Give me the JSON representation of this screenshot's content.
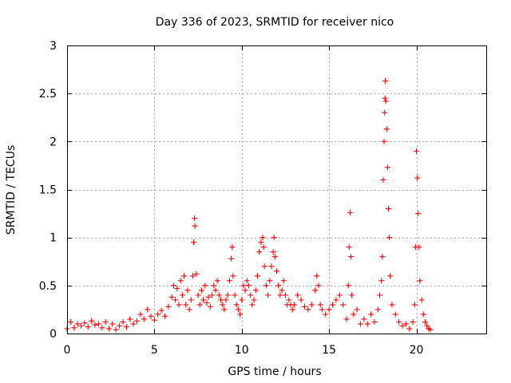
{
  "chart_data": {
    "type": "scatter",
    "title": "Day 336 of 2023, SRMTID for receiver nico",
    "xlabel": "GPS time / hours",
    "ylabel": "SRMTID / TECUs",
    "xlim": [
      0,
      24
    ],
    "ylim": [
      0,
      3
    ],
    "xticks": [
      0,
      5,
      10,
      15,
      20
    ],
    "xtick_labels": [
      "0",
      "5",
      "10",
      "15",
      "20"
    ],
    "yticks": [
      0,
      0.5,
      1,
      1.5,
      2,
      2.5,
      3
    ],
    "ytick_labels": [
      "0",
      "0.5",
      "1",
      "1.5",
      "2",
      "2.5",
      "3"
    ],
    "grid": true,
    "marker": "plus",
    "color": "#ff0000",
    "series": [
      {
        "name": "SRMTID",
        "points": [
          [
            0.0,
            0.05
          ],
          [
            0.2,
            0.12
          ],
          [
            0.4,
            0.06
          ],
          [
            0.6,
            0.1
          ],
          [
            0.8,
            0.08
          ],
          [
            1.0,
            0.11
          ],
          [
            1.2,
            0.07
          ],
          [
            1.4,
            0.13
          ],
          [
            1.6,
            0.09
          ],
          [
            1.8,
            0.1
          ],
          [
            2.0,
            0.06
          ],
          [
            2.2,
            0.12
          ],
          [
            2.4,
            0.05
          ],
          [
            2.6,
            0.1
          ],
          [
            2.8,
            0.04
          ],
          [
            3.0,
            0.08
          ],
          [
            3.2,
            0.12
          ],
          [
            3.4,
            0.07
          ],
          [
            3.6,
            0.15
          ],
          [
            3.8,
            0.1
          ],
          [
            4.0,
            0.13
          ],
          [
            4.2,
            0.2
          ],
          [
            4.4,
            0.15
          ],
          [
            4.6,
            0.25
          ],
          [
            4.8,
            0.18
          ],
          [
            5.0,
            0.14
          ],
          [
            5.2,
            0.2
          ],
          [
            5.4,
            0.24
          ],
          [
            5.6,
            0.18
          ],
          [
            5.8,
            0.28
          ],
          [
            6.0,
            0.38
          ],
          [
            6.1,
            0.5
          ],
          [
            6.2,
            0.35
          ],
          [
            6.3,
            0.47
          ],
          [
            6.4,
            0.3
          ],
          [
            6.5,
            0.55
          ],
          [
            6.6,
            0.4
          ],
          [
            6.7,
            0.6
          ],
          [
            6.8,
            0.3
          ],
          [
            6.9,
            0.45
          ],
          [
            7.0,
            0.25
          ],
          [
            7.1,
            0.35
          ],
          [
            7.2,
            0.6
          ],
          [
            7.25,
            0.95
          ],
          [
            7.3,
            1.2
          ],
          [
            7.32,
            1.12
          ],
          [
            7.4,
            0.62
          ],
          [
            7.5,
            0.4
          ],
          [
            7.6,
            0.3
          ],
          [
            7.7,
            0.45
          ],
          [
            7.8,
            0.35
          ],
          [
            7.9,
            0.5
          ],
          [
            8.0,
            0.32
          ],
          [
            8.1,
            0.38
          ],
          [
            8.2,
            0.28
          ],
          [
            8.3,
            0.4
          ],
          [
            8.4,
            0.5
          ],
          [
            8.5,
            0.45
          ],
          [
            8.6,
            0.55
          ],
          [
            8.7,
            0.4
          ],
          [
            8.8,
            0.35
          ],
          [
            8.9,
            0.3
          ],
          [
            9.0,
            0.25
          ],
          [
            9.1,
            0.35
          ],
          [
            9.2,
            0.4
          ],
          [
            9.3,
            0.55
          ],
          [
            9.4,
            0.78
          ],
          [
            9.45,
            0.9
          ],
          [
            9.5,
            0.6
          ],
          [
            9.6,
            0.4
          ],
          [
            9.7,
            0.3
          ],
          [
            9.8,
            0.25
          ],
          [
            9.9,
            0.2
          ],
          [
            10.0,
            0.35
          ],
          [
            10.1,
            0.5
          ],
          [
            10.2,
            0.45
          ],
          [
            10.3,
            0.55
          ],
          [
            10.4,
            0.5
          ],
          [
            10.5,
            0.4
          ],
          [
            10.6,
            0.3
          ],
          [
            10.7,
            0.35
          ],
          [
            10.8,
            0.45
          ],
          [
            10.9,
            0.6
          ],
          [
            11.0,
            0.85
          ],
          [
            11.1,
            0.95
          ],
          [
            11.2,
            1.0
          ],
          [
            11.25,
            0.9
          ],
          [
            11.3,
            0.7
          ],
          [
            11.4,
            0.5
          ],
          [
            11.5,
            0.4
          ],
          [
            11.6,
            0.55
          ],
          [
            11.7,
            0.7
          ],
          [
            11.8,
            0.85
          ],
          [
            11.85,
            1.0
          ],
          [
            11.9,
            0.8
          ],
          [
            12.0,
            0.65
          ],
          [
            12.1,
            0.5
          ],
          [
            12.2,
            0.4
          ],
          [
            12.3,
            0.45
          ],
          [
            12.4,
            0.55
          ],
          [
            12.5,
            0.4
          ],
          [
            12.6,
            0.3
          ],
          [
            12.7,
            0.35
          ],
          [
            12.8,
            0.3
          ],
          [
            12.9,
            0.25
          ],
          [
            13.0,
            0.3
          ],
          [
            13.2,
            0.4
          ],
          [
            13.4,
            0.35
          ],
          [
            13.6,
            0.28
          ],
          [
            13.8,
            0.25
          ],
          [
            14.0,
            0.3
          ],
          [
            14.2,
            0.45
          ],
          [
            14.3,
            0.6
          ],
          [
            14.4,
            0.5
          ],
          [
            14.5,
            0.3
          ],
          [
            14.6,
            0.25
          ],
          [
            14.8,
            0.2
          ],
          [
            15.0,
            0.25
          ],
          [
            15.2,
            0.3
          ],
          [
            15.4,
            0.35
          ],
          [
            15.6,
            0.4
          ],
          [
            15.8,
            0.3
          ],
          [
            16.0,
            0.15
          ],
          [
            16.1,
            0.5
          ],
          [
            16.15,
            0.9
          ],
          [
            16.2,
            1.26
          ],
          [
            16.25,
            0.8
          ],
          [
            16.3,
            0.4
          ],
          [
            16.4,
            0.2
          ],
          [
            16.6,
            0.25
          ],
          [
            16.8,
            0.1
          ],
          [
            17.0,
            0.15
          ],
          [
            17.2,
            0.1
          ],
          [
            17.4,
            0.2
          ],
          [
            17.6,
            0.12
          ],
          [
            17.8,
            0.25
          ],
          [
            17.9,
            0.4
          ],
          [
            18.0,
            0.55
          ],
          [
            18.05,
            0.8
          ],
          [
            18.1,
            1.6
          ],
          [
            18.15,
            2.0
          ],
          [
            18.18,
            2.3
          ],
          [
            18.2,
            2.45
          ],
          [
            18.22,
            2.63
          ],
          [
            18.25,
            2.42
          ],
          [
            18.3,
            2.13
          ],
          [
            18.35,
            1.73
          ],
          [
            18.4,
            1.3
          ],
          [
            18.45,
            1.0
          ],
          [
            18.5,
            0.6
          ],
          [
            18.6,
            0.3
          ],
          [
            18.8,
            0.2
          ],
          [
            19.0,
            0.12
          ],
          [
            19.2,
            0.08
          ],
          [
            19.4,
            0.1
          ],
          [
            19.6,
            0.05
          ],
          [
            19.8,
            0.12
          ],
          [
            19.9,
            0.3
          ],
          [
            19.95,
            0.9
          ],
          [
            20.0,
            1.9
          ],
          [
            20.05,
            1.62
          ],
          [
            20.1,
            1.25
          ],
          [
            20.15,
            0.9
          ],
          [
            20.2,
            0.55
          ],
          [
            20.3,
            0.35
          ],
          [
            20.4,
            0.2
          ],
          [
            20.5,
            0.12
          ],
          [
            20.6,
            0.08
          ],
          [
            20.7,
            0.05
          ],
          [
            20.8,
            0.04
          ]
        ]
      }
    ]
  }
}
